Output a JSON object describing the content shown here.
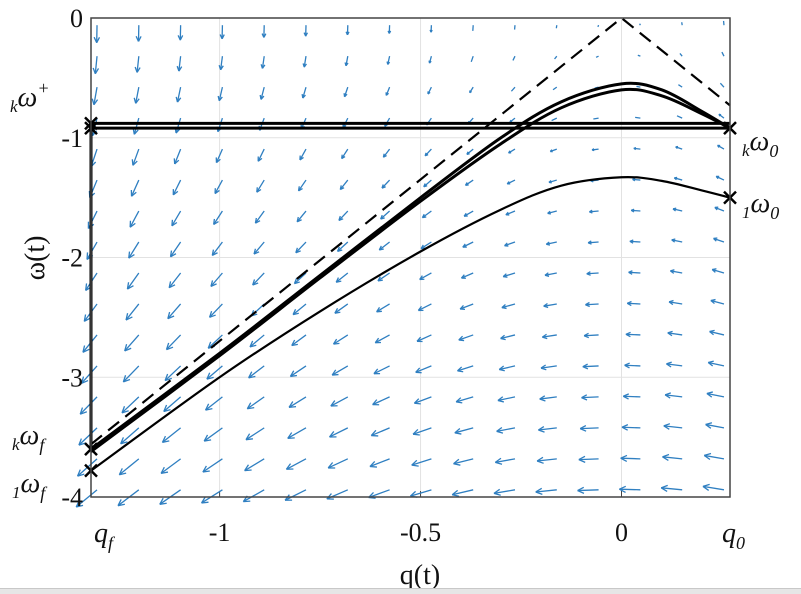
{
  "chart_data": {
    "type": "line",
    "title": "",
    "xlabel": "q(t)",
    "ylabel": "ω(t)",
    "xlim": [
      -1.32,
      0.27
    ],
    "ylim": [
      -4,
      0
    ],
    "grid": true,
    "x_ticks": [
      {
        "value": -1,
        "label": "-1"
      },
      {
        "value": -0.5,
        "label": "-0.5"
      },
      {
        "value": 0,
        "label": "0"
      }
    ],
    "y_ticks": [
      {
        "value": 0,
        "label": "0"
      },
      {
        "value": -1,
        "label": "-1"
      },
      {
        "value": -2,
        "label": "-2"
      },
      {
        "value": -3,
        "label": "-3"
      },
      {
        "value": -4,
        "label": "-4"
      }
    ],
    "vector_field": {
      "color": "#2f7fc1",
      "columns": 16,
      "rows": 16,
      "u": "ω",
      "v": "2.5·q"
    },
    "series": [
      {
        "name": "boundary-dashed",
        "style": "dashed",
        "x": [
          -1.32,
          0,
          0.27
        ],
        "y": [
          -3.56,
          0,
          -0.73
        ]
      },
      {
        "name": "trajectory-k-upper",
        "style": "thick",
        "x": [
          -1.32,
          -1.0,
          -0.75,
          -0.5,
          -0.3,
          -0.15,
          0,
          0.1,
          0.2,
          0.27
        ],
        "y": [
          -3.6,
          -2.8,
          -2.15,
          -1.5,
          -1.0,
          -0.7,
          -0.55,
          -0.6,
          -0.78,
          -0.92
        ]
      },
      {
        "name": "trajectory-k-lower",
        "style": "thick",
        "x": [
          -1.32,
          -1.0,
          -0.75,
          -0.5,
          -0.3,
          -0.15,
          0,
          0.1,
          0.2,
          0.27
        ],
        "y": [
          -3.62,
          -2.82,
          -2.17,
          -1.53,
          -1.05,
          -0.75,
          -0.6,
          -0.65,
          -0.8,
          -0.92
        ]
      },
      {
        "name": "trajectory-1",
        "style": "solid",
        "x": [
          -1.32,
          -1.0,
          -0.75,
          -0.5,
          -0.3,
          -0.15,
          0,
          0.1,
          0.2,
          0.27
        ],
        "y": [
          -3.78,
          -3.0,
          -2.45,
          -1.95,
          -1.6,
          -1.4,
          -1.33,
          -1.36,
          -1.44,
          -1.5
        ]
      },
      {
        "name": "horizontal-upper",
        "style": "thick",
        "x": [
          -1.32,
          0.27
        ],
        "y": [
          -0.88,
          -0.88
        ]
      },
      {
        "name": "horizontal-lower",
        "style": "thick",
        "x": [
          -1.32,
          0.27
        ],
        "y": [
          -0.92,
          -0.92
        ]
      },
      {
        "name": "vertical-qf",
        "style": "thick",
        "x": [
          -1.32,
          -1.32
        ],
        "y": [
          -0.88,
          -3.6
        ]
      }
    ],
    "markers": [
      {
        "x": -1.32,
        "y": -0.88
      },
      {
        "x": -1.32,
        "y": -0.92
      },
      {
        "x": -1.32,
        "y": -3.6
      },
      {
        "x": -1.32,
        "y": -3.78
      },
      {
        "x": 0.27,
        "y": -0.92
      },
      {
        "x": 0.27,
        "y": -1.5
      }
    ],
    "annotations": [
      {
        "id": "k-omega-plus",
        "pre": "k",
        "main": "ω",
        "post": "+",
        "post_type": "sup"
      },
      {
        "id": "k-omega-0",
        "pre": "k",
        "main": "ω",
        "post": "0",
        "post_type": "sub"
      },
      {
        "id": "1-omega-0",
        "pre": "1",
        "main": "ω",
        "post": "0",
        "post_type": "sub"
      },
      {
        "id": "k-omega-f",
        "pre": "k",
        "main": "ω",
        "post": "f",
        "post_type": "sub"
      },
      {
        "id": "1-omega-f",
        "pre": "1",
        "main": "ω",
        "post": "f",
        "post_type": "sub"
      },
      {
        "id": "q-f",
        "pre": "",
        "main": "q",
        "post": "f",
        "post_type": "sub"
      },
      {
        "id": "q-0",
        "pre": "",
        "main": "q",
        "post": "0",
        "post_type": "sub"
      }
    ]
  }
}
